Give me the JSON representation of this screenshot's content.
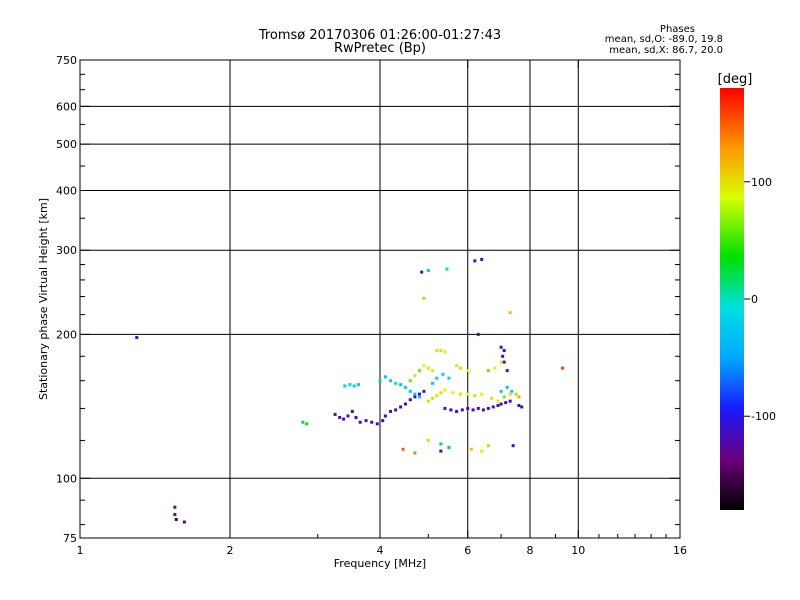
{
  "header": {
    "title_line1": "Tromsø 20170306 01:26:00-01:27:43",
    "title_line2": "RwPretec (Bp)",
    "phase_title": "Phases",
    "phase_o": "mean, sd,O: -89.0, 19.8",
    "phase_x": "mean, sd,X:  86.7, 20.0"
  },
  "colorbar": {
    "unit_label": "[deg]",
    "range": [
      -180,
      180
    ],
    "ticks": [
      {
        "value": 100,
        "label": "100"
      },
      {
        "value": 0,
        "label": "0"
      },
      {
        "value": -100,
        "label": "-100"
      }
    ]
  },
  "chart_data": {
    "type": "scatter",
    "title": "Tromsø 20170306 01:26:00-01:27:43",
    "subtitle": "RwPretec (Bp)",
    "xlabel": "Frequency [MHz]",
    "ylabel": "Stationary phase Virtual Height [km]",
    "xscale": "log",
    "yscale": "log",
    "xlim": [
      1,
      16
    ],
    "ylim": [
      75,
      750
    ],
    "xticks": [
      {
        "value": 1,
        "label": "1"
      },
      {
        "value": 2,
        "label": "2"
      },
      {
        "value": 4,
        "label": "4"
      },
      {
        "value": 6,
        "label": "6"
      },
      {
        "value": 8,
        "label": "8"
      },
      {
        "value": 10,
        "label": "10"
      },
      {
        "value": 16,
        "label": "16"
      }
    ],
    "yticks": [
      {
        "value": 75,
        "label": "75"
      },
      {
        "value": 100,
        "label": "100"
      },
      {
        "value": 200,
        "label": "200"
      },
      {
        "value": 300,
        "label": "300"
      },
      {
        "value": 400,
        "label": "400"
      },
      {
        "value": 500,
        "label": "500"
      },
      {
        "value": 600,
        "label": "600"
      },
      {
        "value": 750,
        "label": "750"
      }
    ],
    "grid_x": [
      2,
      4,
      6,
      8,
      10
    ],
    "grid_y": [
      100,
      200,
      300,
      400,
      500,
      600
    ],
    "points": [
      [
        1.3,
        197,
        -110
      ],
      [
        1.55,
        87,
        -120
      ],
      [
        1.55,
        84,
        -115
      ],
      [
        1.56,
        82,
        -150
      ],
      [
        1.62,
        81,
        -110
      ],
      [
        2.8,
        131,
        20
      ],
      [
        2.85,
        130,
        30
      ],
      [
        3.25,
        136,
        -110
      ],
      [
        3.32,
        134,
        -120
      ],
      [
        3.38,
        133,
        -115
      ],
      [
        3.45,
        135,
        -110
      ],
      [
        3.52,
        138,
        -120
      ],
      [
        3.58,
        134,
        -115
      ],
      [
        3.65,
        131,
        -110
      ],
      [
        3.4,
        156,
        -20
      ],
      [
        3.48,
        157,
        -15
      ],
      [
        3.55,
        156,
        -20
      ],
      [
        3.62,
        157,
        -30
      ],
      [
        3.75,
        132,
        -120
      ],
      [
        3.85,
        131,
        -115
      ],
      [
        3.95,
        130,
        -110
      ],
      [
        4.05,
        132,
        -120
      ],
      [
        4.1,
        135,
        -115
      ],
      [
        4.2,
        138,
        -110
      ],
      [
        4.0,
        160,
        -20
      ],
      [
        4.1,
        163,
        -30
      ],
      [
        4.2,
        160,
        -20
      ],
      [
        4.3,
        158,
        -10
      ],
      [
        4.3,
        139,
        -115
      ],
      [
        4.4,
        141,
        -120
      ],
      [
        4.5,
        143,
        -110
      ],
      [
        4.6,
        146,
        -120
      ],
      [
        4.7,
        148,
        -110
      ],
      [
        4.8,
        150,
        -115
      ],
      [
        4.9,
        152,
        -110
      ],
      [
        4.4,
        157,
        -30
      ],
      [
        4.5,
        155,
        -20
      ],
      [
        4.6,
        152,
        -25
      ],
      [
        4.7,
        150,
        -30
      ],
      [
        4.8,
        148,
        -20
      ],
      [
        4.6,
        160,
        60
      ],
      [
        4.7,
        164,
        80
      ],
      [
        4.8,
        168,
        60
      ],
      [
        4.9,
        172,
        90
      ],
      [
        5.0,
        170,
        95
      ],
      [
        5.1,
        168,
        80
      ],
      [
        5.0,
        145,
        100
      ],
      [
        5.1,
        147,
        100
      ],
      [
        5.2,
        149,
        95
      ],
      [
        5.3,
        151,
        100
      ],
      [
        5.4,
        153,
        90
      ],
      [
        5.1,
        158,
        -20
      ],
      [
        5.2,
        162,
        -20
      ],
      [
        5.35,
        165,
        -10
      ],
      [
        5.5,
        162,
        -20
      ],
      [
        5.2,
        185,
        95
      ],
      [
        5.3,
        185,
        100
      ],
      [
        5.4,
        184,
        90
      ],
      [
        5.4,
        140,
        -120
      ],
      [
        5.55,
        139,
        -115
      ],
      [
        5.7,
        138,
        -110
      ],
      [
        5.85,
        139,
        -120
      ],
      [
        6.0,
        140,
        -115
      ],
      [
        6.15,
        139,
        -110
      ],
      [
        6.3,
        140,
        -120
      ],
      [
        6.45,
        139,
        -115
      ],
      [
        6.6,
        140,
        -110
      ],
      [
        6.75,
        141,
        -120
      ],
      [
        6.9,
        142,
        -110
      ],
      [
        7.0,
        143,
        -115
      ],
      [
        7.15,
        144,
        -120
      ],
      [
        7.3,
        145,
        -110
      ],
      [
        5.6,
        151,
        90
      ],
      [
        5.8,
        150,
        100
      ],
      [
        6.0,
        150,
        90
      ],
      [
        6.2,
        149,
        100
      ],
      [
        6.4,
        150,
        90
      ],
      [
        5.7,
        172,
        80
      ],
      [
        5.8,
        170,
        100
      ],
      [
        6.0,
        168,
        90
      ],
      [
        5.3,
        118,
        20
      ],
      [
        5.5,
        116,
        30
      ],
      [
        5.3,
        114,
        -110
      ],
      [
        5.0,
        120,
        100
      ],
      [
        4.7,
        113,
        140
      ],
      [
        4.45,
        115,
        150
      ],
      [
        4.85,
        270,
        -110
      ],
      [
        5.0,
        272,
        -20
      ],
      [
        5.45,
        274,
        -10
      ],
      [
        6.2,
        285,
        -110
      ],
      [
        6.4,
        287,
        -115
      ],
      [
        6.3,
        200,
        -120
      ],
      [
        4.9,
        238,
        110
      ],
      [
        7.3,
        222,
        110
      ],
      [
        6.6,
        168,
        60
      ],
      [
        6.8,
        170,
        90
      ],
      [
        7.0,
        175,
        80
      ],
      [
        7.05,
        180,
        -110
      ],
      [
        7.1,
        185,
        -120
      ],
      [
        7.0,
        188,
        -115
      ],
      [
        7.1,
        175,
        -110
      ],
      [
        7.2,
        168,
        -120
      ],
      [
        7.0,
        152,
        -20
      ],
      [
        7.2,
        155,
        -30
      ],
      [
        7.35,
        152,
        -20
      ],
      [
        6.7,
        147,
        100
      ],
      [
        6.9,
        145,
        90
      ],
      [
        7.1,
        148,
        60
      ],
      [
        7.3,
        150,
        100
      ],
      [
        7.5,
        150,
        110
      ],
      [
        7.6,
        148,
        120
      ],
      [
        6.1,
        115,
        110
      ],
      [
        6.4,
        114,
        90
      ],
      [
        6.6,
        117,
        110
      ],
      [
        7.4,
        117,
        -110
      ],
      [
        9.3,
        170,
        160
      ],
      [
        7.6,
        142,
        -100
      ],
      [
        7.7,
        141,
        -110
      ]
    ]
  }
}
